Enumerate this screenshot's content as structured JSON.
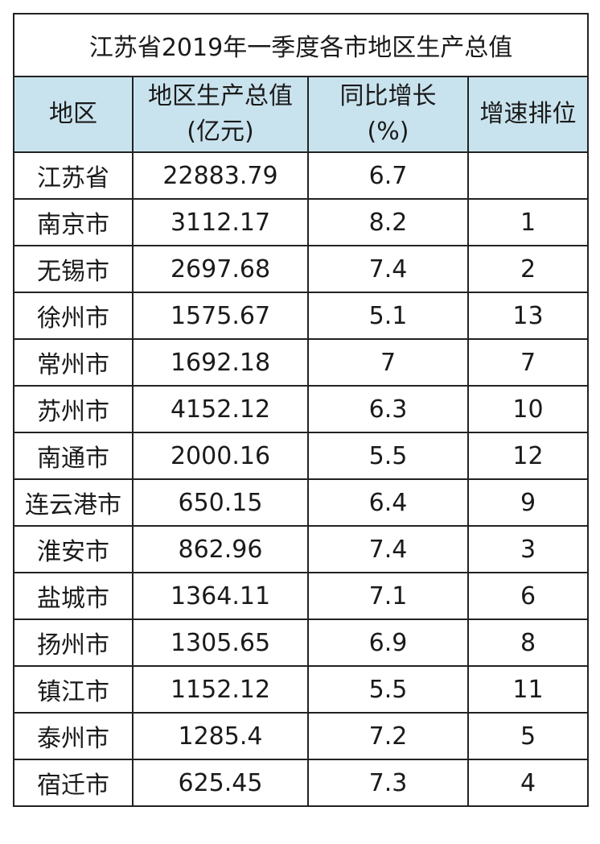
{
  "title": "江苏省2019年一季度各市地区生产总值",
  "headers": {
    "region": "地区",
    "gdp_line1": "地区生产总值",
    "gdp_line2": "(亿元)",
    "growth_line1": "同比增长",
    "growth_line2": "(%)",
    "rank": "增速排位"
  },
  "rows": [
    {
      "region": "江苏省",
      "gdp": "22883.79",
      "growth": "6.7",
      "rank": ""
    },
    {
      "region": "南京市",
      "gdp": "3112.17",
      "growth": "8.2",
      "rank": "1"
    },
    {
      "region": "无锡市",
      "gdp": "2697.68",
      "growth": "7.4",
      "rank": "2"
    },
    {
      "region": "徐州市",
      "gdp": "1575.67",
      "growth": "5.1",
      "rank": "13"
    },
    {
      "region": "常州市",
      "gdp": "1692.18",
      "growth": "7",
      "rank": "7"
    },
    {
      "region": "苏州市",
      "gdp": "4152.12",
      "growth": "6.3",
      "rank": "10"
    },
    {
      "region": "南通市",
      "gdp": "2000.16",
      "growth": "5.5",
      "rank": "12"
    },
    {
      "region": "连云港市",
      "gdp": "650.15",
      "growth": "6.4",
      "rank": "9"
    },
    {
      "region": "淮安市",
      "gdp": "862.96",
      "growth": "7.4",
      "rank": "3"
    },
    {
      "region": "盐城市",
      "gdp": "1364.11",
      "growth": "7.1",
      "rank": "6"
    },
    {
      "region": "扬州市",
      "gdp": "1305.65",
      "growth": "6.9",
      "rank": "8"
    },
    {
      "region": "镇江市",
      "gdp": "1152.12",
      "growth": "5.5",
      "rank": "11"
    },
    {
      "region": "泰州市",
      "gdp": "1285.4",
      "growth": "7.2",
      "rank": "5"
    },
    {
      "region": "宿迁市",
      "gdp": "625.45",
      "growth": "7.3",
      "rank": "4"
    }
  ],
  "colors": {
    "header_bg": "#c9e3ee",
    "border": "#222222"
  }
}
